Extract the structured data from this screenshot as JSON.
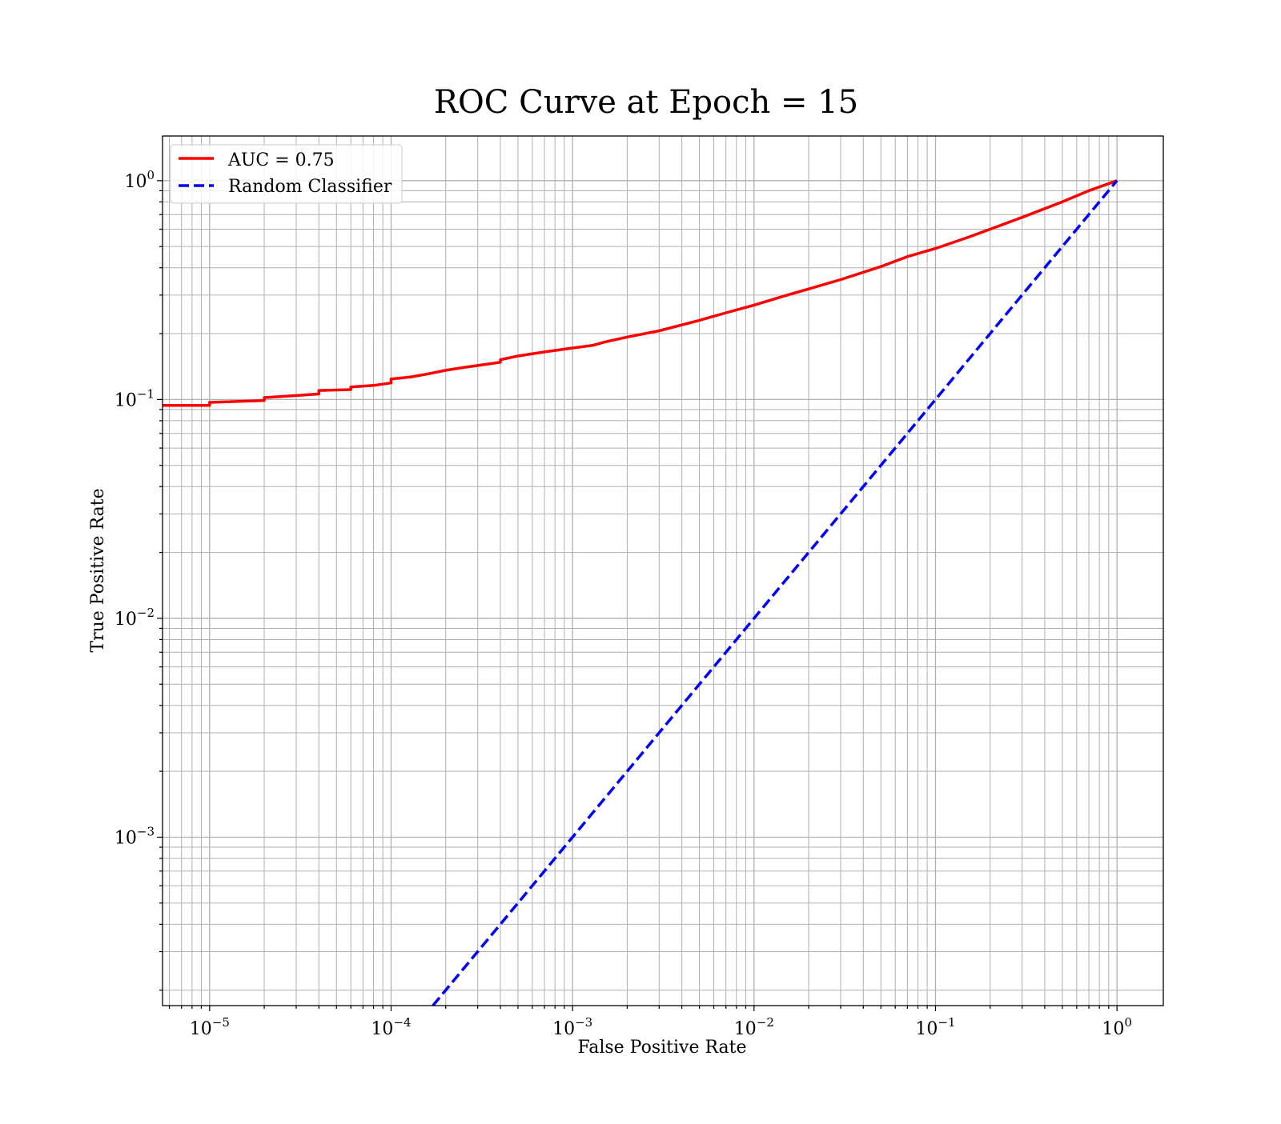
{
  "chart_data": {
    "type": "line",
    "title": "ROC Curve at Epoch = 15",
    "xlabel": "False Positive Rate",
    "ylabel": "True Positive Rate",
    "xscale": "log",
    "yscale": "log",
    "xlim": [
      5.5e-06,
      1.8
    ],
    "ylim": [
      0.00017,
      1.6
    ],
    "grid": "on (major and minor)",
    "legend_position": "upper-left",
    "x_tick_labels": [
      {
        "base": "10",
        "exp": "−5",
        "value": 1e-05
      },
      {
        "base": "10",
        "exp": "−4",
        "value": 0.0001
      },
      {
        "base": "10",
        "exp": "−3",
        "value": 0.001
      },
      {
        "base": "10",
        "exp": "−2",
        "value": 0.01
      },
      {
        "base": "10",
        "exp": "−1",
        "value": 0.1
      },
      {
        "base": "10",
        "exp": "0",
        "value": 1
      }
    ],
    "y_tick_labels": [
      {
        "base": "10",
        "exp": "−3",
        "value": 0.001
      },
      {
        "base": "10",
        "exp": "−2",
        "value": 0.01
      },
      {
        "base": "10",
        "exp": "−1",
        "value": 0.1
      },
      {
        "base": "10",
        "exp": "0",
        "value": 1
      }
    ],
    "series": [
      {
        "name": "AUC = 0.75",
        "color": "#ff0000",
        "style": "solid",
        "x": [
          5.5e-06,
          1e-05,
          1e-05,
          2e-05,
          2e-05,
          4e-05,
          4e-05,
          6e-05,
          6e-05,
          8e-05,
          0.0001,
          0.0001,
          0.00013,
          0.00016,
          0.0002,
          0.00025,
          0.0003,
          0.0004,
          0.0004,
          0.0005,
          0.0007,
          0.001,
          0.0013,
          0.0015,
          0.002,
          0.003,
          0.005,
          0.007,
          0.01,
          0.015,
          0.02,
          0.03,
          0.05,
          0.07,
          0.1,
          0.15,
          0.2,
          0.3,
          0.5,
          0.7,
          1.0
        ],
        "y": [
          0.094,
          0.094,
          0.097,
          0.099,
          0.102,
          0.106,
          0.11,
          0.111,
          0.114,
          0.116,
          0.119,
          0.124,
          0.127,
          0.131,
          0.136,
          0.14,
          0.143,
          0.148,
          0.152,
          0.158,
          0.165,
          0.172,
          0.177,
          0.183,
          0.193,
          0.206,
          0.23,
          0.249,
          0.27,
          0.299,
          0.32,
          0.353,
          0.405,
          0.45,
          0.49,
          0.55,
          0.6,
          0.68,
          0.8,
          0.9,
          1.0
        ]
      },
      {
        "name": "Random Classifier",
        "color": "#0000ff",
        "style": "dashed",
        "x": [
          0.00017,
          1.0
        ],
        "y": [
          0.00017,
          1.0
        ]
      }
    ]
  }
}
